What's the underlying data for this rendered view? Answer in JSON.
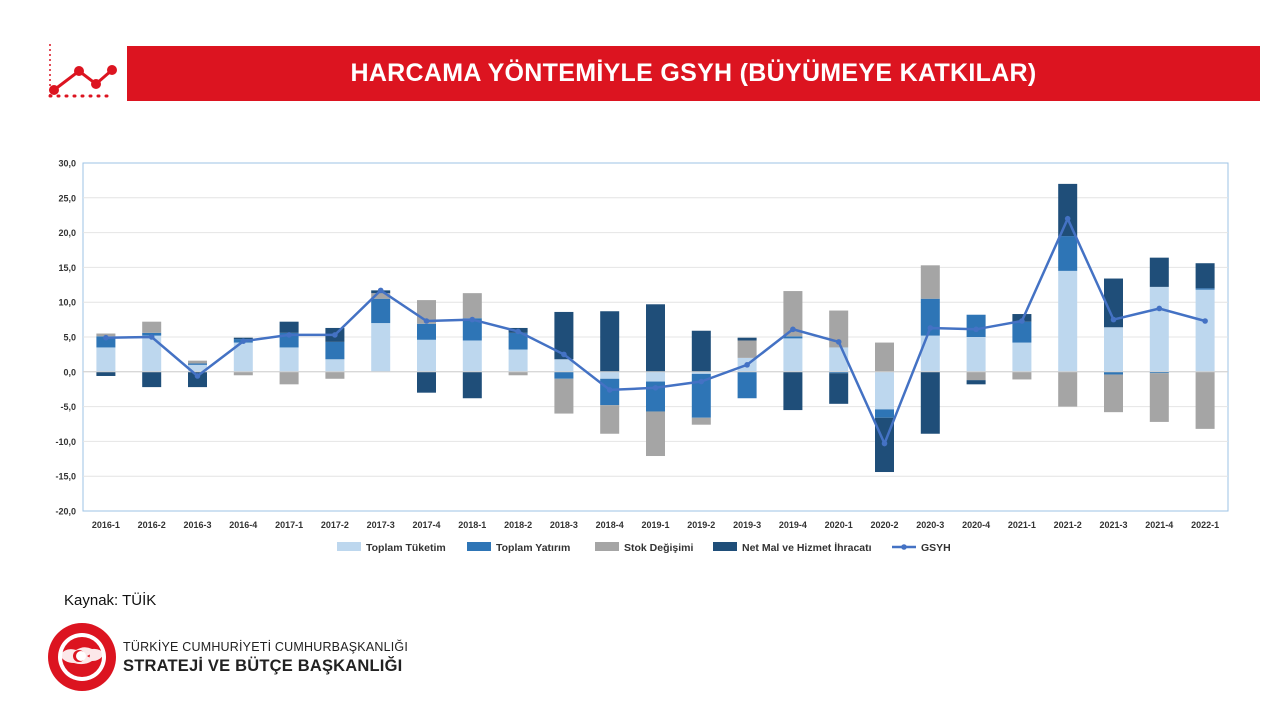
{
  "header": {
    "title": "HARCAMA YÖNTEMİYLE GSYH (BÜYÜMEYE KATKILAR)"
  },
  "source": "Kaynak: TÜİK",
  "footer": {
    "line1": "TÜRKİYE CUMHURİYETİ CUMHURBAŞKANLIĞI",
    "line2": "STRATEJİ VE BÜTÇE BAŞKANLIĞI",
    "seal_text": "T.C. CUMHURBAŞKANLIĞI STRATEJİ VE BÜTÇE BAŞKANLIĞI"
  },
  "colors": {
    "brand_red": "#dc1420",
    "toplam_tuketim": "#bdd7ee",
    "toplam_yatirim": "#2e75b6",
    "stok_degisimi": "#a5a5a5",
    "net_ihracat": "#1f4e79",
    "gsyh": "#4472c4"
  },
  "chart_data": {
    "type": "bar",
    "stacked": true,
    "title": "",
    "xlabel": "",
    "ylabel": "",
    "ylim": [
      -20,
      30
    ],
    "yticks": [
      "30,0",
      "25,0",
      "20,0",
      "15,0",
      "10,0",
      "5,0",
      "0,0",
      "-5,0",
      "-10,0",
      "-15,0",
      "-20,0"
    ],
    "grid": true,
    "legend_position": "bottom",
    "categories": [
      "2016-1",
      "2016-2",
      "2016-3",
      "2016-4",
      "2017-1",
      "2017-2",
      "2017-3",
      "2017-4",
      "2018-1",
      "2018-2",
      "2018-3",
      "2018-4",
      "2019-1",
      "2019-2",
      "2019-3",
      "2019-4",
      "2020-1",
      "2020-2",
      "2020-3",
      "2020-4",
      "2021-1",
      "2021-2",
      "2021-3",
      "2021-4",
      "2022-1"
    ],
    "series": [
      {
        "name": "Toplam Tüketim",
        "kind": "bar",
        "color": "#bdd7ee",
        "values": [
          3.5,
          5.2,
          1.0,
          4.2,
          3.5,
          1.8,
          7.0,
          4.6,
          4.5,
          3.2,
          1.8,
          -1.0,
          -1.4,
          -0.3,
          2.0,
          4.8,
          3.5,
          -5.4,
          5.2,
          5.0,
          4.2,
          14.5,
          6.4,
          12.2,
          11.8
        ]
      },
      {
        "name": "Toplam Yatırım",
        "kind": "bar",
        "color": "#2e75b6",
        "values": [
          1.6,
          0.4,
          0.2,
          0.5,
          2.1,
          2.5,
          3.5,
          2.3,
          3.2,
          2.4,
          -1.0,
          -3.8,
          -4.3,
          -6.3,
          -3.8,
          0.3,
          -0.2,
          -1.2,
          5.3,
          3.2,
          3.0,
          5.0,
          -0.4,
          -0.2,
          0.2
        ]
      },
      {
        "name": "Stok Değişimi",
        "kind": "bar",
        "color": "#a5a5a5",
        "values": [
          0.4,
          1.6,
          0.4,
          -0.5,
          -1.8,
          -1.0,
          0.8,
          3.4,
          3.6,
          -0.5,
          -5.0,
          -4.1,
          -6.4,
          -1.0,
          2.5,
          6.5,
          5.3,
          4.2,
          4.8,
          -1.2,
          -1.1,
          -5.0,
          -5.4,
          -7.0,
          -8.2
        ]
      },
      {
        "name": "Net Mal ve Hizmet İhracatı",
        "kind": "bar",
        "color": "#1f4e79",
        "values": [
          -0.6,
          -2.2,
          -2.2,
          0.2,
          1.6,
          2.0,
          0.4,
          -3.0,
          -3.8,
          0.7,
          6.8,
          8.7,
          9.7,
          5.9,
          0.4,
          -5.5,
          -4.4,
          -7.8,
          -8.9,
          -0.6,
          1.1,
          7.5,
          7.0,
          4.2,
          3.6
        ]
      },
      {
        "name": "GSYH",
        "kind": "line",
        "color": "#4472c4",
        "values": [
          4.9,
          5.0,
          -0.6,
          4.4,
          5.3,
          5.3,
          11.7,
          7.3,
          7.5,
          5.8,
          2.5,
          -2.6,
          -2.3,
          -1.4,
          1.0,
          6.1,
          4.3,
          -10.3,
          6.3,
          6.1,
          7.3,
          22.0,
          7.5,
          9.1,
          7.3
        ]
      }
    ]
  }
}
